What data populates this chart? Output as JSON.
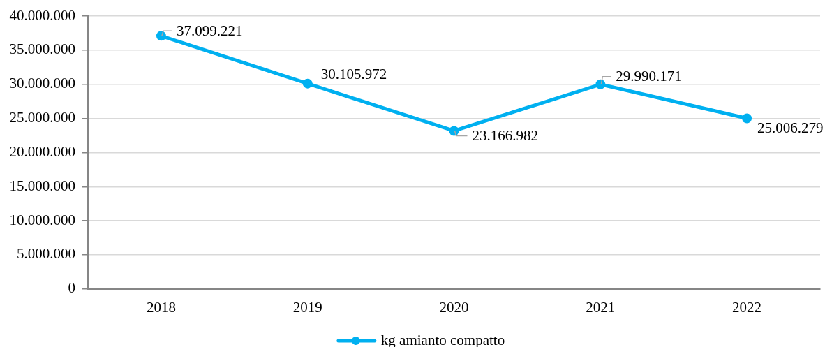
{
  "chart_data": {
    "type": "line",
    "categories": [
      "2018",
      "2019",
      "2020",
      "2021",
      "2022"
    ],
    "series": [
      {
        "name": "kg amianto compatto",
        "color": "#00b0f0",
        "values": [
          37099221,
          30105972,
          23166982,
          29990171,
          25006279
        ],
        "value_labels": [
          "37.099.221",
          "30.105.972",
          "23.166.982",
          "29.990.171",
          "25.006.279"
        ]
      }
    ],
    "ylim": [
      0,
      40000000
    ],
    "yticks": [
      0,
      {
        "value": 5000000,
        "label": "5.000.000"
      },
      {
        "value": 10000000,
        "label": "10.000.000"
      },
      {
        "value": 15000000,
        "label": "15.000.000"
      },
      {
        "value": 20000000,
        "label": "20.000.000"
      },
      {
        "value": 25000000,
        "label": "25.000.000"
      },
      {
        "value": 30000000,
        "label": "30.000.000"
      },
      {
        "value": 35000000,
        "label": "35.000.000"
      },
      {
        "value": 40000000,
        "label": "40.000.000"
      }
    ],
    "grid": "y",
    "legend": "bottom",
    "marker": "circle",
    "line_style": "solid"
  }
}
